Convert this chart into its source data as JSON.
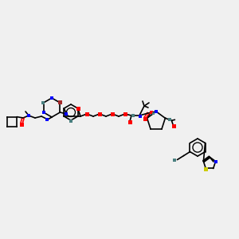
{
  "bg_color": "#f0f0f0",
  "bond_color": "#000000",
  "atom_colors": {
    "O": "#ff0000",
    "N": "#0000ff",
    "Br": "#a52a2a",
    "S": "#cccc00",
    "C_highlight": "#4a8080"
  },
  "figsize": [
    3.0,
    3.0
  ],
  "dpi": 100
}
